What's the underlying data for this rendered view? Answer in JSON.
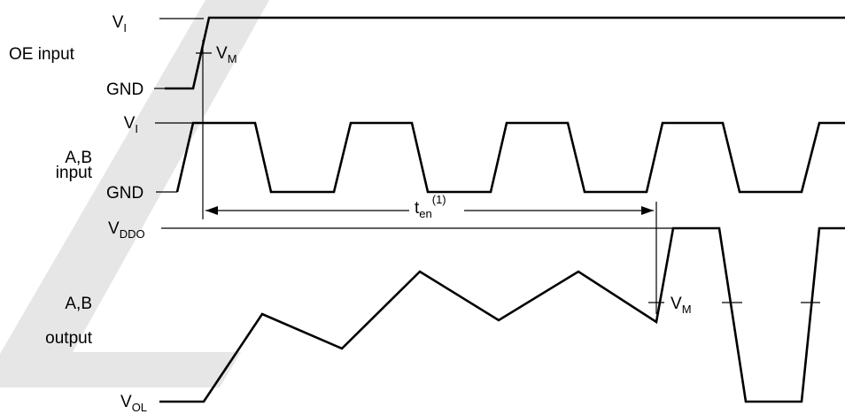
{
  "colors": {
    "waveform": "#000000",
    "background": "#ffffff",
    "watermark": "#e6e6e6"
  },
  "oe": {
    "label": "OE input",
    "high_level": {
      "main": "V",
      "sub": "I"
    },
    "low_level": "GND",
    "threshold": {
      "main": "V",
      "sub": "M"
    }
  },
  "ab_input": {
    "label_line1": "A,B",
    "label_line2": "input",
    "high_level": {
      "main": "V",
      "sub": "I"
    },
    "low_level": "GND"
  },
  "timing": {
    "main": "t",
    "sub": "en",
    "sup": "(1)"
  },
  "ab_output": {
    "label_line1": "A,B",
    "label_line2": "output",
    "high_level": {
      "main": "V",
      "sub": "DDO"
    },
    "low_level": {
      "main": "V",
      "sub": "OL"
    },
    "threshold": {
      "main": "V",
      "sub": "M"
    }
  },
  "watermark": {
    "shape": "large letter watermark"
  }
}
